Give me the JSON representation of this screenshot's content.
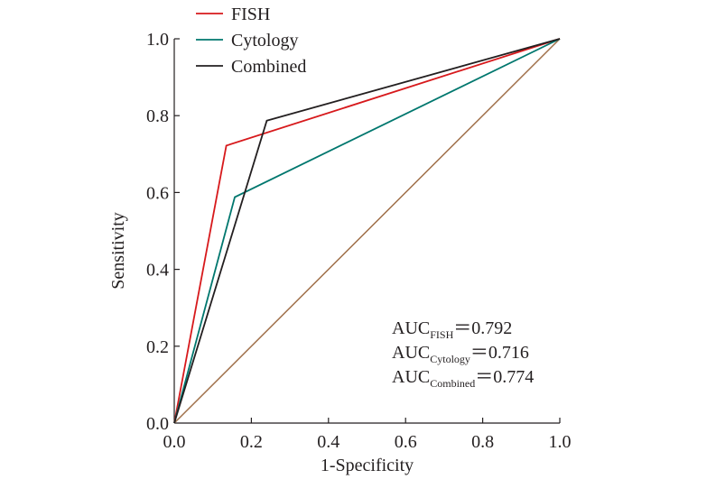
{
  "chart_data": {
    "type": "line",
    "xlabel": "1-Specificity",
    "ylabel": "Sensitivity",
    "xlim": [
      0.0,
      1.0
    ],
    "ylim": [
      0.0,
      1.0
    ],
    "xticks": [
      "0.0",
      "0.2",
      "0.4",
      "0.6",
      "0.8",
      "1.0"
    ],
    "yticks": [
      "0.0",
      "0.2",
      "0.4",
      "0.6",
      "0.8",
      "1.0"
    ],
    "grid": false,
    "legend_position": "top-left",
    "series": [
      {
        "name": "FISH",
        "color": "#d7191c",
        "x": [
          0.0,
          0.135,
          1.0
        ],
        "y": [
          0.0,
          0.722,
          1.0
        ]
      },
      {
        "name": "Cytology",
        "color": "#00776e",
        "x": [
          0.0,
          0.157,
          1.0
        ],
        "y": [
          0.0,
          0.588,
          1.0
        ]
      },
      {
        "name": "Combined",
        "color": "#231f20",
        "x": [
          0.0,
          0.24,
          1.0
        ],
        "y": [
          0.0,
          0.787,
          1.0
        ]
      }
    ],
    "reference_line": {
      "color": "#a0704a",
      "x": [
        0.0,
        1.0
      ],
      "y": [
        0.0,
        1.0
      ]
    },
    "annotations": [
      {
        "prefix": "AUC",
        "sub": "FISH",
        "value": "＝0.792"
      },
      {
        "prefix": "AUC",
        "sub": "Cytology",
        "value": "＝0.716"
      },
      {
        "prefix": "AUC",
        "sub": "Combined",
        "value": "＝0.774"
      }
    ]
  }
}
